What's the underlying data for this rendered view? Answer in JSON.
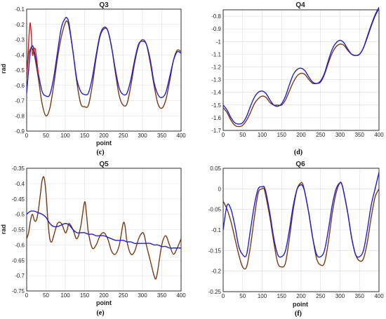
{
  "figure": {
    "captions": [
      "(c)",
      "(d)",
      "(e)",
      "(f)"
    ]
  },
  "colors": {
    "series_blue": "#1f1fd8",
    "series_brown": "#7a3a12",
    "series_red": "#d81e1e"
  },
  "chart_data": [
    {
      "type": "line",
      "title": "Q3",
      "xlabel": "point",
      "ylabel": "rad",
      "xlim": [
        0,
        400
      ],
      "ylim": [
        -0.9,
        -0.1
      ],
      "grid": true,
      "xticks": [
        "0",
        "50",
        "100",
        "150",
        "200",
        "250",
        "300",
        "350",
        "400"
      ],
      "yticks": [
        "-0.1",
        "-0.2",
        "-0.3",
        "-0.4",
        "-0.5",
        "-0.6",
        "-0.7",
        "-0.8",
        "-0.9"
      ],
      "series": [
        {
          "color": "#7a3a12",
          "x": [
            0,
            5,
            10,
            15,
            20,
            30,
            40,
            50,
            60,
            70,
            80,
            90,
            100,
            105,
            110,
            120,
            130,
            140,
            150,
            160,
            170,
            180,
            190,
            200,
            210,
            220,
            230,
            240,
            250,
            260,
            270,
            280,
            290,
            300,
            310,
            320,
            330,
            340,
            350,
            360,
            370,
            380,
            390,
            400
          ],
          "y": [
            -0.55,
            -0.4,
            -0.36,
            -0.36,
            -0.4,
            -0.55,
            -0.72,
            -0.8,
            -0.75,
            -0.6,
            -0.42,
            -0.28,
            -0.19,
            -0.18,
            -0.22,
            -0.38,
            -0.58,
            -0.72,
            -0.74,
            -0.73,
            -0.6,
            -0.42,
            -0.28,
            -0.23,
            -0.24,
            -0.35,
            -0.52,
            -0.67,
            -0.73,
            -0.72,
            -0.6,
            -0.45,
            -0.34,
            -0.3,
            -0.33,
            -0.45,
            -0.6,
            -0.72,
            -0.75,
            -0.7,
            -0.58,
            -0.44,
            -0.37,
            -0.38
          ]
        },
        {
          "color": "#1f1fd8",
          "x": [
            0,
            5,
            10,
            15,
            20,
            30,
            40,
            50,
            60,
            70,
            80,
            90,
            100,
            105,
            110,
            120,
            130,
            140,
            150,
            160,
            170,
            180,
            190,
            200,
            210,
            220,
            230,
            240,
            250,
            260,
            270,
            280,
            290,
            300,
            310,
            320,
            330,
            340,
            350,
            360,
            370,
            380,
            390,
            400
          ],
          "y": [
            -0.65,
            -0.5,
            -0.37,
            -0.34,
            -0.38,
            -0.52,
            -0.64,
            -0.67,
            -0.66,
            -0.55,
            -0.38,
            -0.22,
            -0.16,
            -0.16,
            -0.2,
            -0.38,
            -0.56,
            -0.64,
            -0.66,
            -0.65,
            -0.55,
            -0.4,
            -0.27,
            -0.22,
            -0.24,
            -0.35,
            -0.5,
            -0.62,
            -0.66,
            -0.65,
            -0.56,
            -0.43,
            -0.33,
            -0.31,
            -0.33,
            -0.43,
            -0.58,
            -0.66,
            -0.68,
            -0.65,
            -0.55,
            -0.44,
            -0.38,
            -0.39
          ]
        },
        {
          "color": "#d81e1e",
          "x": [
            0,
            3,
            6,
            9,
            12,
            15,
            18,
            22,
            26,
            30
          ],
          "y": [
            -0.52,
            -0.42,
            -0.28,
            -0.19,
            -0.27,
            -0.4,
            -0.37,
            -0.36,
            -0.43,
            -0.52
          ]
        }
      ]
    },
    {
      "type": "line",
      "title": "Q4",
      "xlabel": "",
      "ylabel": "",
      "xlim": [
        0,
        400
      ],
      "ylim": [
        -1.7,
        -0.75
      ],
      "grid": true,
      "xticks": [
        "0",
        "50",
        "100",
        "150",
        "200",
        "250",
        "300",
        "350",
        "400"
      ],
      "yticks": [
        "-0.8",
        "-0.9",
        "-1",
        "-1.1",
        "-1.2",
        "-1.3",
        "-1.4",
        "-1.5",
        "-1.6",
        "-1.7"
      ],
      "series": [
        {
          "color": "#7a3a12",
          "x": [
            0,
            10,
            20,
            30,
            40,
            50,
            60,
            70,
            80,
            90,
            100,
            110,
            120,
            130,
            140,
            150,
            160,
            170,
            180,
            190,
            200,
            210,
            220,
            230,
            240,
            250,
            260,
            270,
            280,
            290,
            300,
            310,
            320,
            330,
            340,
            350,
            360,
            370,
            380,
            390,
            400
          ],
          "y": [
            -1.52,
            -1.56,
            -1.62,
            -1.66,
            -1.67,
            -1.66,
            -1.62,
            -1.56,
            -1.49,
            -1.45,
            -1.43,
            -1.44,
            -1.48,
            -1.5,
            -1.5,
            -1.5,
            -1.46,
            -1.39,
            -1.32,
            -1.27,
            -1.25,
            -1.26,
            -1.3,
            -1.33,
            -1.33,
            -1.32,
            -1.26,
            -1.17,
            -1.09,
            -1.04,
            -1.02,
            -1.03,
            -1.07,
            -1.1,
            -1.11,
            -1.1,
            -1.05,
            -0.97,
            -0.88,
            -0.8,
            -0.74
          ]
        },
        {
          "color": "#1f1fd8",
          "x": [
            0,
            10,
            20,
            30,
            40,
            50,
            60,
            70,
            80,
            90,
            100,
            110,
            120,
            130,
            140,
            150,
            160,
            170,
            180,
            190,
            200,
            210,
            220,
            230,
            240,
            250,
            260,
            270,
            280,
            290,
            300,
            310,
            320,
            330,
            340,
            350,
            360,
            370,
            380,
            390,
            400
          ],
          "y": [
            -1.5,
            -1.54,
            -1.6,
            -1.64,
            -1.65,
            -1.64,
            -1.59,
            -1.51,
            -1.44,
            -1.4,
            -1.39,
            -1.41,
            -1.46,
            -1.5,
            -1.51,
            -1.49,
            -1.43,
            -1.34,
            -1.26,
            -1.22,
            -1.21,
            -1.23,
            -1.28,
            -1.32,
            -1.33,
            -1.31,
            -1.25,
            -1.15,
            -1.06,
            -1.01,
            -0.99,
            -1.01,
            -1.06,
            -1.1,
            -1.11,
            -1.1,
            -1.05,
            -0.96,
            -0.87,
            -0.79,
            -0.73
          ]
        }
      ]
    },
    {
      "type": "line",
      "title": "Q5",
      "xlabel": "point",
      "ylabel": "rad",
      "xlim": [
        0,
        400
      ],
      "ylim": [
        -0.75,
        -0.35
      ],
      "grid": true,
      "xticks": [
        "0",
        "50",
        "100",
        "150",
        "200",
        "250",
        "300",
        "350",
        "400"
      ],
      "yticks": [
        "-0.35",
        "-0.4",
        "-0.45",
        "-0.5",
        "-0.55",
        "-0.6",
        "-0.65",
        "-0.7",
        "-0.75"
      ],
      "series": [
        {
          "color": "#7a3a12",
          "x": [
            0,
            5,
            10,
            15,
            20,
            25,
            30,
            35,
            40,
            45,
            50,
            55,
            60,
            65,
            70,
            80,
            90,
            100,
            105,
            110,
            120,
            130,
            140,
            150,
            155,
            160,
            170,
            180,
            190,
            200,
            210,
            220,
            230,
            240,
            250,
            255,
            260,
            270,
            280,
            290,
            300,
            305,
            310,
            320,
            330,
            335,
            340,
            350,
            360,
            370,
            380,
            390,
            400
          ],
          "y": [
            -0.58,
            -0.56,
            -0.52,
            -0.5,
            -0.52,
            -0.52,
            -0.49,
            -0.44,
            -0.39,
            -0.38,
            -0.43,
            -0.52,
            -0.58,
            -0.59,
            -0.57,
            -0.53,
            -0.53,
            -0.56,
            -0.55,
            -0.53,
            -0.55,
            -0.58,
            -0.54,
            -0.46,
            -0.5,
            -0.56,
            -0.61,
            -0.6,
            -0.57,
            -0.56,
            -0.58,
            -0.62,
            -0.63,
            -0.6,
            -0.53,
            -0.54,
            -0.59,
            -0.63,
            -0.62,
            -0.58,
            -0.56,
            -0.57,
            -0.6,
            -0.65,
            -0.7,
            -0.71,
            -0.68,
            -0.6,
            -0.57,
            -0.6,
            -0.63,
            -0.61,
            -0.58
          ]
        },
        {
          "color": "#1f1fd8",
          "x": [
            0,
            10,
            20,
            30,
            40,
            50,
            60,
            70,
            80,
            90,
            100,
            110,
            120,
            130,
            140,
            150,
            160,
            170,
            180,
            190,
            200,
            210,
            220,
            230,
            240,
            250,
            260,
            270,
            280,
            290,
            300,
            310,
            320,
            330,
            340,
            350,
            360,
            370,
            380,
            390,
            400
          ],
          "y": [
            -0.5,
            -0.49,
            -0.49,
            -0.495,
            -0.5,
            -0.51,
            -0.53,
            -0.54,
            -0.54,
            -0.535,
            -0.53,
            -0.535,
            -0.55,
            -0.56,
            -0.56,
            -0.56,
            -0.565,
            -0.565,
            -0.57,
            -0.57,
            -0.57,
            -0.575,
            -0.58,
            -0.585,
            -0.585,
            -0.585,
            -0.59,
            -0.59,
            -0.595,
            -0.595,
            -0.595,
            -0.595,
            -0.595,
            -0.6,
            -0.6,
            -0.605,
            -0.605,
            -0.61,
            -0.61,
            -0.61,
            -0.61
          ]
        }
      ]
    },
    {
      "type": "line",
      "title": "Q6",
      "xlabel": "point",
      "ylabel": "",
      "xlim": [
        0,
        400
      ],
      "ylim": [
        -0.25,
        0.05
      ],
      "grid": true,
      "xticks": [
        "0",
        "50",
        "100",
        "150",
        "200",
        "250",
        "300",
        "350",
        "400"
      ],
      "yticks": [
        "0.05",
        "0",
        "-0.05",
        "-0.1",
        "-0.15",
        "-0.2",
        "-0.25"
      ],
      "series": [
        {
          "color": "#7a3a12",
          "x": [
            0,
            10,
            20,
            30,
            40,
            50,
            60,
            70,
            80,
            90,
            100,
            105,
            110,
            120,
            130,
            140,
            150,
            160,
            170,
            180,
            190,
            200,
            205,
            210,
            220,
            230,
            240,
            250,
            260,
            270,
            280,
            290,
            300,
            305,
            310,
            320,
            330,
            340,
            350,
            360,
            370,
            380,
            390,
            400
          ],
          "y": [
            -0.03,
            -0.05,
            -0.08,
            -0.12,
            -0.16,
            -0.19,
            -0.19,
            -0.14,
            -0.07,
            -0.01,
            0.0,
            0.0,
            -0.02,
            -0.07,
            -0.13,
            -0.18,
            -0.19,
            -0.18,
            -0.12,
            -0.05,
            0.0,
            0.015,
            0.01,
            -0.01,
            -0.06,
            -0.12,
            -0.17,
            -0.185,
            -0.18,
            -0.13,
            -0.06,
            -0.01,
            0.015,
            0.01,
            -0.01,
            -0.06,
            -0.12,
            -0.16,
            -0.175,
            -0.17,
            -0.13,
            -0.07,
            -0.02,
            0.0
          ]
        },
        {
          "color": "#1f1fd8",
          "x": [
            0,
            10,
            20,
            30,
            40,
            50,
            60,
            70,
            80,
            90,
            100,
            105,
            110,
            120,
            130,
            140,
            150,
            160,
            170,
            180,
            190,
            200,
            205,
            210,
            220,
            230,
            240,
            250,
            260,
            270,
            280,
            290,
            300,
            305,
            310,
            320,
            330,
            340,
            350,
            360,
            370,
            380,
            390,
            400
          ],
          "y": [
            -0.1,
            -0.04,
            -0.05,
            -0.09,
            -0.14,
            -0.16,
            -0.16,
            -0.1,
            -0.04,
            0.0,
            0.005,
            0.005,
            -0.01,
            -0.06,
            -0.12,
            -0.16,
            -0.165,
            -0.15,
            -0.1,
            -0.04,
            0.0,
            0.01,
            0.005,
            -0.01,
            -0.06,
            -0.12,
            -0.16,
            -0.165,
            -0.15,
            -0.1,
            -0.04,
            0.0,
            0.015,
            0.01,
            -0.01,
            -0.06,
            -0.12,
            -0.16,
            -0.165,
            -0.15,
            -0.1,
            -0.04,
            0.0,
            0.04
          ]
        }
      ]
    }
  ]
}
